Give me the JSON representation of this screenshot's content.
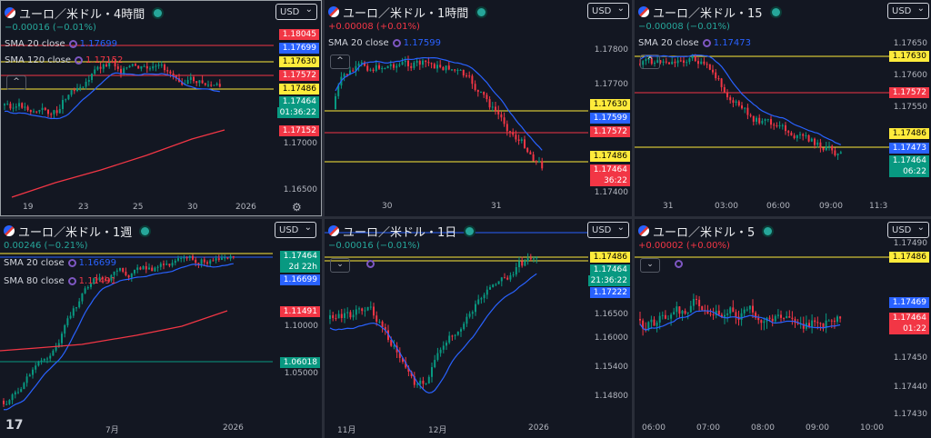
{
  "panes": [
    {
      "title": "ユーロ／米ドル・4時間",
      "currency": "USD",
      "change": "−0.00016 (−0.01%)",
      "change_color": "#26a69a",
      "indicators": [
        {
          "label": "SMA 20 close",
          "value": "1.17699",
          "color": "#2962ff"
        },
        {
          "label": "SMA 120 close",
          "value": "1.17152",
          "color": "#f23645"
        }
      ],
      "prices": [
        {
          "text": "1.18045",
          "bg": "#f23645"
        },
        {
          "text": "1.17699",
          "bg": "#2962ff"
        },
        {
          "text": "1.17630",
          "bg": "#ffeb3b",
          "fg": "#000"
        },
        {
          "text": "1.17572",
          "bg": "#f23645"
        },
        {
          "text": "1.17486",
          "bg": "#ffeb3b",
          "fg": "#000"
        },
        {
          "text": "1.17464",
          "bg": "#089981",
          "sub": "01:36:22"
        },
        {
          "text": "1.17152",
          "bg": "#f23645"
        }
      ],
      "ticks": [
        "1.17000",
        "1.16500"
      ],
      "xticks": [
        "19",
        "23",
        "25",
        "30",
        "2026"
      ]
    },
    {
      "title": "ユーロ／米ドル・1時間",
      "currency": "USD",
      "change": "+0.00008 (+0.01%)",
      "change_color": "#f23645",
      "indicators": [
        {
          "label": "SMA 20 close",
          "value": "1.17599",
          "color": "#2962ff"
        }
      ],
      "prices": [
        {
          "text": "1.17630",
          "bg": "#ffeb3b",
          "fg": "#000"
        },
        {
          "text": "1.17599",
          "bg": "#2962ff"
        },
        {
          "text": "1.17572",
          "bg": "#f23645"
        },
        {
          "text": "1.17486",
          "bg": "#ffeb3b",
          "fg": "#000"
        },
        {
          "text": "1.17464",
          "bg": "#f23645",
          "sub": "36:22"
        }
      ],
      "ticks": [
        "1.17800",
        "1.17700",
        "1.17400"
      ],
      "xticks": [
        "30",
        "31"
      ]
    },
    {
      "title": "ユーロ／米ドル・15",
      "currency": "USD",
      "change": "−0.00008 (−0.01%)",
      "change_color": "#26a69a",
      "indicators": [
        {
          "label": "SMA 20 close",
          "value": "1.17473",
          "color": "#2962ff"
        }
      ],
      "prices": [
        {
          "text": "1.17630",
          "bg": "#ffeb3b",
          "fg": "#000"
        },
        {
          "text": "1.17572",
          "bg": "#f23645"
        },
        {
          "text": "1.17486",
          "bg": "#ffeb3b",
          "fg": "#000"
        },
        {
          "text": "1.17473",
          "bg": "#2962ff"
        },
        {
          "text": "1.17464",
          "bg": "#089981",
          "sub": "06:22"
        }
      ],
      "ticks": [
        "1.17650",
        "1.17600",
        "1.17550"
      ],
      "xticks": [
        "31",
        "03:00",
        "06:00",
        "09:00",
        "11:3"
      ]
    },
    {
      "title": "ユーロ／米ドル・1週",
      "currency": "USD",
      "change": "0.00246 (−0.21%)",
      "change_color": "#26a69a",
      "indicators": [
        {
          "label": "SMA 20 close",
          "value": "1.16699",
          "color": "#2962ff"
        },
        {
          "label": "SMA 80 close",
          "value": "1.11491",
          "color": "#f23645"
        }
      ],
      "prices": [
        {
          "text": "1.17464",
          "bg": "#089981",
          "sub": "2d 22h"
        },
        {
          "text": "1.16699",
          "bg": "#2962ff"
        },
        {
          "text": "1.11491",
          "bg": "#f23645"
        },
        {
          "text": "1.06018",
          "bg": "#089981"
        }
      ],
      "ticks": [
        "1.10000",
        "1.05000"
      ],
      "xticks": [
        "7月",
        "2026"
      ]
    },
    {
      "title": "ユーロ／米ドル・1日",
      "currency": "USD",
      "change": "−0.00016 (−0.01%)",
      "change_color": "#26a69a",
      "indicators": [],
      "prices": [
        {
          "text": "1.17486",
          "bg": "#ffeb3b",
          "fg": "#000"
        },
        {
          "text": "1.17464",
          "bg": "#089981",
          "sub": "21:36:22"
        },
        {
          "text": "1.17222",
          "bg": "#2962ff"
        }
      ],
      "ticks": [
        "1.16500",
        "1.16000",
        "1.15400",
        "1.14800"
      ],
      "xticks": [
        "11月",
        "12月",
        "2026"
      ]
    },
    {
      "title": "ユーロ／米ドル・5",
      "currency": "USD",
      "change": "+0.00002 (+0.00%)",
      "change_color": "#f23645",
      "indicators": [],
      "prices": [
        {
          "text": "1.17486",
          "bg": "#ffeb3b",
          "fg": "#000"
        },
        {
          "text": "1.17469",
          "bg": "#2962ff"
        },
        {
          "text": "1.17464",
          "bg": "#f23645",
          "sub": "01:22"
        }
      ],
      "ticks": [
        "1.17490",
        "1.17450",
        "1.17440",
        "1.17430"
      ],
      "xticks": [
        "06:00",
        "07:00",
        "08:00",
        "09:00",
        "10:00"
      ]
    }
  ],
  "logo": "17",
  "colors": {
    "up": "#089981",
    "down": "#f23645",
    "sma": "#2962ff",
    "sma_long": "#f23645",
    "line_yellow": "#ffeb3b"
  }
}
